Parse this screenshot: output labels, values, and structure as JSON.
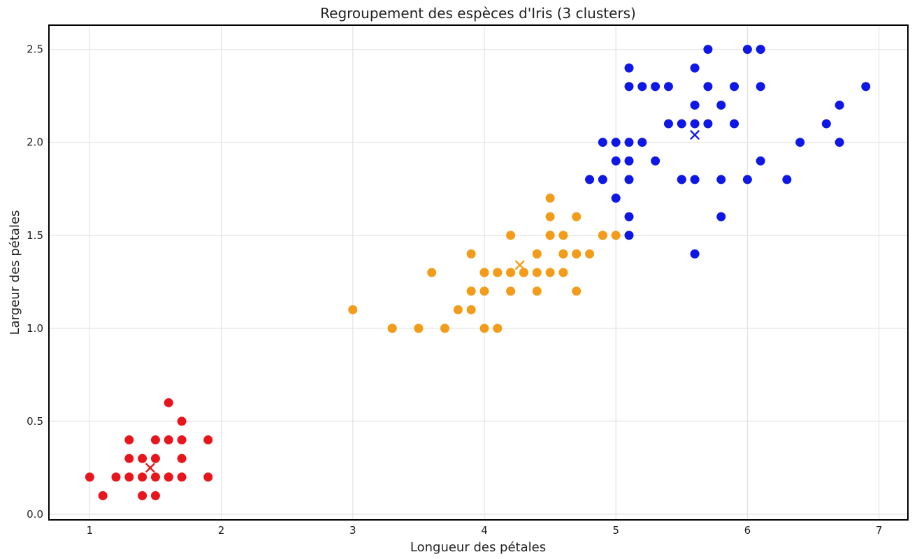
{
  "chart_data": {
    "type": "scatter",
    "title": "Regroupement des espèces d'Iris (3 clusters)",
    "xlabel": "Longueur des pétales",
    "ylabel": "Largeur des pétales",
    "xlim": [
      0.69,
      7.22
    ],
    "ylim": [
      -0.03,
      2.63
    ],
    "xticks": [
      "1",
      "2",
      "3",
      "4",
      "5",
      "6",
      "7"
    ],
    "yticks": [
      "0.0",
      "0.5",
      "1.0",
      "1.5",
      "2.0",
      "2.5"
    ],
    "grid": true,
    "legend": "none",
    "series": [
      {
        "color": "#e8161c",
        "points": [
          [
            1.4,
            0.2
          ],
          [
            1.3,
            0.2
          ],
          [
            1.5,
            0.2
          ],
          [
            1.7,
            0.4
          ],
          [
            1.4,
            0.3
          ],
          [
            1.5,
            0.1
          ],
          [
            1.6,
            0.2
          ],
          [
            1.4,
            0.1
          ],
          [
            1.1,
            0.1
          ],
          [
            1.2,
            0.2
          ],
          [
            1.5,
            0.4
          ],
          [
            1.3,
            0.4
          ],
          [
            1.7,
            0.3
          ],
          [
            1.0,
            0.2
          ],
          [
            1.7,
            0.5
          ],
          [
            1.9,
            0.2
          ],
          [
            1.6,
            0.4
          ],
          [
            1.5,
            0.3
          ],
          [
            1.9,
            0.4
          ],
          [
            1.6,
            0.6
          ],
          [
            1.6,
            0.2
          ],
          [
            1.3,
            0.3
          ],
          [
            1.7,
            0.2
          ]
        ],
        "centroid": [
          1.46,
          0.25
        ]
      },
      {
        "color": "#f39c1a",
        "points": [
          [
            4.7,
            1.4
          ],
          [
            4.5,
            1.5
          ],
          [
            4.0,
            1.3
          ],
          [
            4.6,
            1.5
          ],
          [
            4.5,
            1.3
          ],
          [
            4.7,
            1.6
          ],
          [
            3.3,
            1.0
          ],
          [
            4.6,
            1.3
          ],
          [
            3.9,
            1.4
          ],
          [
            3.5,
            1.0
          ],
          [
            4.2,
            1.5
          ],
          [
            4.0,
            1.0
          ],
          [
            4.7,
            1.4
          ],
          [
            3.6,
            1.3
          ],
          [
            4.4,
            1.4
          ],
          [
            4.1,
            1.0
          ],
          [
            4.5,
            1.5
          ],
          [
            3.9,
            1.1
          ],
          [
            4.8,
            1.8
          ],
          [
            4.9,
            1.5
          ],
          [
            4.7,
            1.2
          ],
          [
            4.3,
            1.3
          ],
          [
            4.4,
            1.4
          ],
          [
            4.8,
            1.4
          ],
          [
            5.0,
            1.5
          ],
          [
            3.5,
            1.0
          ],
          [
            3.8,
            1.1
          ],
          [
            3.7,
            1.0
          ],
          [
            3.9,
            1.2
          ],
          [
            4.5,
            1.6
          ],
          [
            4.4,
            1.3
          ],
          [
            4.1,
            1.3
          ],
          [
            4.0,
            1.3
          ],
          [
            4.4,
            1.2
          ],
          [
            4.6,
            1.4
          ],
          [
            4.0,
            1.2
          ],
          [
            3.3,
            1.0
          ],
          [
            4.2,
            1.3
          ],
          [
            4.2,
            1.2
          ],
          [
            4.3,
            1.3
          ],
          [
            3.0,
            1.1
          ],
          [
            4.1,
            1.3
          ],
          [
            4.5,
            1.7
          ],
          [
            4.9,
            1.5
          ],
          [
            4.6,
            1.4
          ],
          [
            4.2,
            1.3
          ]
        ],
        "centroid": [
          4.27,
          1.34
        ]
      },
      {
        "color": "#0f17e6",
        "points": [
          [
            6.0,
            2.5
          ],
          [
            5.1,
            1.9
          ],
          [
            5.9,
            2.1
          ],
          [
            5.6,
            1.8
          ],
          [
            5.8,
            2.2
          ],
          [
            6.6,
            2.1
          ],
          [
            6.3,
            1.8
          ],
          [
            5.8,
            1.8
          ],
          [
            6.1,
            2.5
          ],
          [
            5.1,
            2.0
          ],
          [
            5.3,
            1.9
          ],
          [
            5.5,
            2.1
          ],
          [
            5.0,
            2.0
          ],
          [
            5.1,
            2.4
          ],
          [
            5.3,
            2.3
          ],
          [
            5.5,
            1.8
          ],
          [
            6.7,
            2.2
          ],
          [
            6.9,
            2.3
          ],
          [
            5.0,
            1.7
          ],
          [
            5.7,
            2.3
          ],
          [
            4.9,
            2.0
          ],
          [
            6.7,
            2.0
          ],
          [
            4.9,
            1.8
          ],
          [
            5.7,
            2.1
          ],
          [
            6.0,
            1.8
          ],
          [
            4.8,
            1.8
          ],
          [
            5.6,
            2.1
          ],
          [
            5.8,
            1.6
          ],
          [
            6.1,
            1.9
          ],
          [
            6.4,
            2.0
          ],
          [
            5.6,
            2.2
          ],
          [
            5.1,
            1.5
          ],
          [
            5.6,
            1.4
          ],
          [
            6.1,
            2.3
          ],
          [
            5.6,
            2.4
          ],
          [
            5.5,
            1.8
          ],
          [
            5.4,
            2.1
          ],
          [
            5.4,
            2.3
          ],
          [
            5.1,
            2.3
          ],
          [
            5.9,
            2.3
          ],
          [
            5.7,
            2.5
          ],
          [
            5.2,
            2.3
          ],
          [
            5.0,
            1.9
          ],
          [
            5.2,
            2.0
          ],
          [
            5.1,
            1.8
          ],
          [
            5.1,
            1.6
          ]
        ],
        "centroid": [
          5.6,
          2.04
        ]
      }
    ]
  }
}
